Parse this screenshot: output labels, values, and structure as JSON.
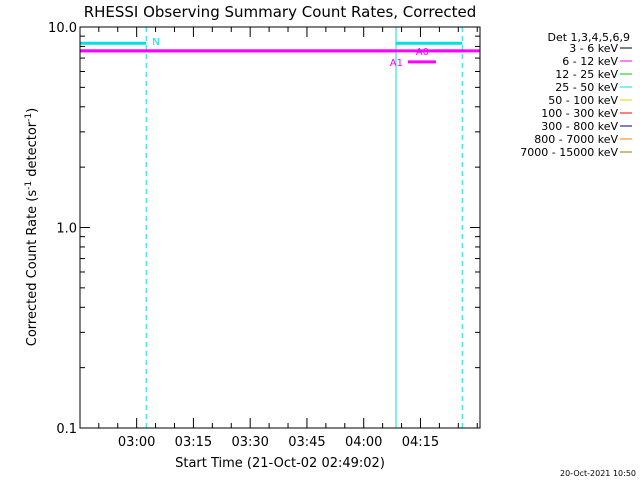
{
  "chart_data": {
    "type": "line",
    "title": "RHESSI Observing Summary Count Rates, Corrected",
    "xlabel": "Start Time (21-Oct-02 02:49:02)",
    "ylabel_main": "Corrected Count Rate (s",
    "ylabel_sup1": "-1",
    "ylabel_mid": " detector",
    "ylabel_sup2": "-1",
    "ylabel_end": ")",
    "y_scale": "log",
    "ylim": [
      0.1,
      10.0
    ],
    "y_ticks": [
      {
        "value": 10.0,
        "label": "10.0"
      },
      {
        "value": 1.0,
        "label": "1.0"
      },
      {
        "value": 0.1,
        "label": "0.1"
      }
    ],
    "x_unit": "minutes after 02:49:02",
    "xlim": [
      -4.0,
      101.7
    ],
    "x_ticks": [
      {
        "value": 10.97,
        "label": "03:00"
      },
      {
        "value": 25.97,
        "label": "03:15"
      },
      {
        "value": 40.97,
        "label": "03:30"
      },
      {
        "value": 55.97,
        "label": "03:45"
      },
      {
        "value": 70.97,
        "label": "04:00"
      },
      {
        "value": 85.97,
        "label": "04:15"
      }
    ],
    "legend_placement": "right",
    "legend_header": "Det 1,3,4,5,6,9",
    "series": [
      {
        "name": "3 - 6 keV",
        "color": "#000000"
      },
      {
        "name": "6 - 12 keV",
        "color": "#ff00ff"
      },
      {
        "name": "12 - 25 keV",
        "color": "#00cc00"
      },
      {
        "name": "25 - 50 keV",
        "color": "#00e0e0"
      },
      {
        "name": "50 - 100 keV",
        "color": "#e8d000"
      },
      {
        "name": "100 - 300 keV",
        "color": "#ff0000"
      },
      {
        "name": "300 - 800 keV",
        "color": "#000080"
      },
      {
        "name": "800 - 7000 keV",
        "color": "#ff8000"
      },
      {
        "name": "7000 - 15000 keV",
        "color": "#8b7d00"
      }
    ],
    "lines": [
      {
        "color": "#ff00ff",
        "x": [
          -4.0,
          101.7
        ],
        "y": [
          7.6,
          7.6
        ]
      },
      {
        "color": "#ff00ff",
        "x": [
          -4.0,
          79.0
        ],
        "y": [
          7.6,
          7.6
        ]
      }
    ],
    "markers": [
      {
        "label": "N",
        "color": "#00e0e0",
        "x1": -4.0,
        "x2": 13.5,
        "y": 8.3
      },
      {
        "label": "",
        "color": "#00e0e0",
        "x1": 79.5,
        "x2": 97.0,
        "y": 8.3
      },
      {
        "label": "A0",
        "color": "#ff00ff",
        "x1": 83.0,
        "x2": 88.0,
        "y": 7.6
      },
      {
        "label": "A1",
        "color": "#ff00ff",
        "x1": 83.0,
        "x2": 89.5,
        "y": 6.7
      }
    ],
    "vlines": [
      {
        "x": -4.0,
        "color": "#00e0e0",
        "style": "solid"
      },
      {
        "x": 13.5,
        "color": "#00e0e0",
        "style": "dashed"
      },
      {
        "x": 79.5,
        "color": "#00e0e0",
        "style": "solid"
      },
      {
        "x": 97.0,
        "color": "#00e0e0",
        "style": "dashed"
      }
    ],
    "grid": false
  },
  "footer": {
    "timestamp": "20-Oct-2021 10:50"
  }
}
